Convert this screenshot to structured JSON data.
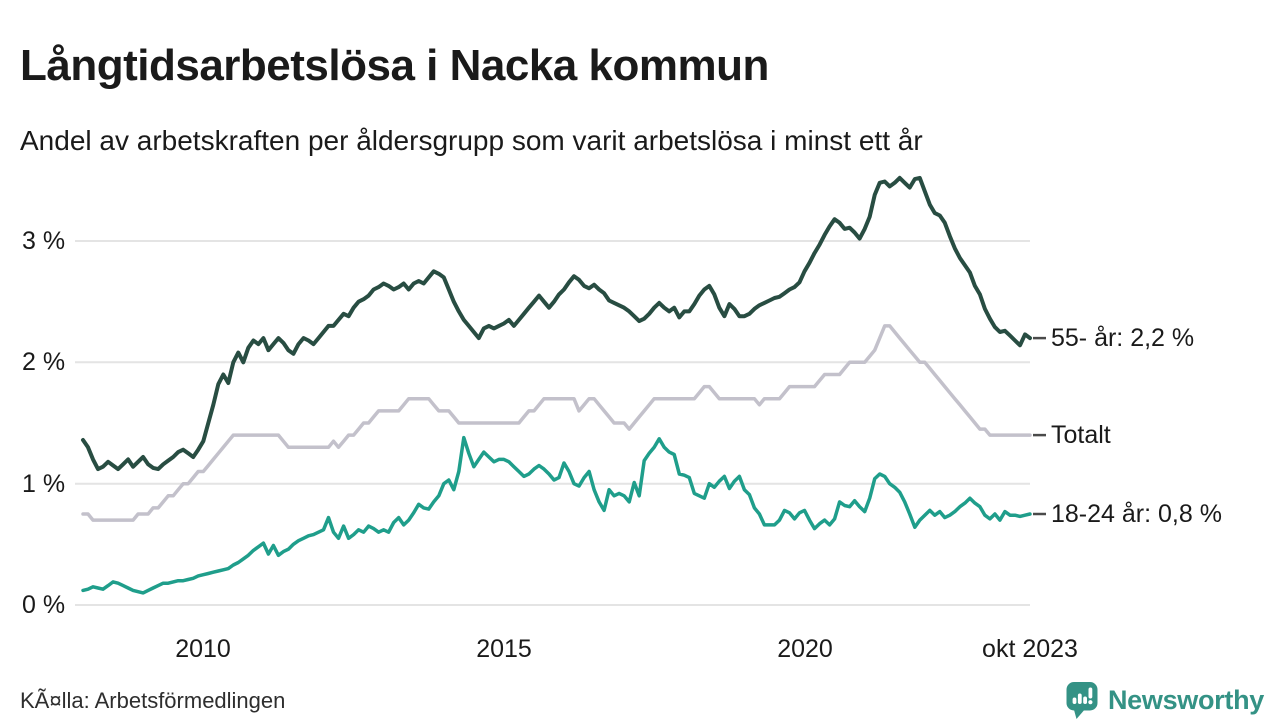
{
  "header": {
    "title": "Långtidsarbetslösa i Nacka kommun",
    "subtitle": "Andel av arbetskraften per åldersgrupp som varit arbetslösa i minst ett år"
  },
  "footer": {
    "source": "KÃ¤lla: Arbetsförmedlingen",
    "brand": "Newsworthy"
  },
  "colors": {
    "text": "#1a1a1a",
    "grid": "#e4e4e4",
    "label_dash": "#4a4a4a",
    "series_55": "#284d42",
    "series_total": "#c3c1cb",
    "series_1824": "#1f9e8b",
    "brand_teal": "#349285"
  },
  "chart_data": {
    "type": "line",
    "title": "Långtidsarbetslösa i Nacka kommun",
    "subtitle": "Andel av arbetskraften per åldersgrupp som varit arbetslösa i minst ett år",
    "xlabel": "",
    "ylabel": "",
    "x_unit": "month",
    "x_start": "2008-01",
    "x_end": "2023-10",
    "x_start_year": 2008.0,
    "x_end_year": 2023.75,
    "ylim": [
      0,
      3.6
    ],
    "grid": true,
    "legend_position": "right-end-labels",
    "yticks": [
      {
        "value": 0,
        "label": "0 %"
      },
      {
        "value": 1,
        "label": "1 %"
      },
      {
        "value": 2,
        "label": "2 %"
      },
      {
        "value": 3,
        "label": "3 %"
      }
    ],
    "xticks": [
      {
        "t": 2010.0,
        "label": "2010"
      },
      {
        "t": 2015.0,
        "label": "2015"
      },
      {
        "t": 2020.0,
        "label": "2020"
      },
      {
        "t": 2023.75,
        "label": "okt 2023"
      }
    ],
    "series": [
      {
        "name": "55- år",
        "end_label": "55- år: 2,2 %",
        "end_value": "2,2 %",
        "color": "#284d42",
        "stroke_width": 4,
        "values": [
          1.36,
          1.3,
          1.2,
          1.12,
          1.14,
          1.18,
          1.15,
          1.12,
          1.16,
          1.2,
          1.14,
          1.18,
          1.22,
          1.16,
          1.13,
          1.12,
          1.16,
          1.19,
          1.22,
          1.26,
          1.28,
          1.25,
          1.22,
          1.28,
          1.35,
          1.5,
          1.65,
          1.82,
          1.9,
          1.83,
          2.0,
          2.08,
          2.0,
          2.12,
          2.18,
          2.15,
          2.2,
          2.1,
          2.15,
          2.2,
          2.16,
          2.1,
          2.07,
          2.15,
          2.2,
          2.18,
          2.15,
          2.2,
          2.25,
          2.3,
          2.3,
          2.35,
          2.4,
          2.38,
          2.45,
          2.5,
          2.52,
          2.55,
          2.6,
          2.62,
          2.65,
          2.63,
          2.6,
          2.62,
          2.65,
          2.6,
          2.65,
          2.67,
          2.65,
          2.7,
          2.75,
          2.73,
          2.7,
          2.6,
          2.5,
          2.42,
          2.35,
          2.3,
          2.25,
          2.2,
          2.28,
          2.3,
          2.28,
          2.3,
          2.32,
          2.35,
          2.3,
          2.35,
          2.4,
          2.45,
          2.5,
          2.55,
          2.5,
          2.45,
          2.5,
          2.56,
          2.6,
          2.66,
          2.71,
          2.68,
          2.63,
          2.61,
          2.64,
          2.6,
          2.57,
          2.51,
          2.49,
          2.47,
          2.45,
          2.42,
          2.38,
          2.34,
          2.36,
          2.4,
          2.45,
          2.49,
          2.45,
          2.42,
          2.45,
          2.37,
          2.42,
          2.42,
          2.48,
          2.55,
          2.6,
          2.63,
          2.56,
          2.45,
          2.38,
          2.48,
          2.44,
          2.38,
          2.38,
          2.4,
          2.44,
          2.47,
          2.49,
          2.51,
          2.53,
          2.54,
          2.57,
          2.6,
          2.62,
          2.66,
          2.75,
          2.82,
          2.9,
          2.97,
          3.05,
          3.12,
          3.18,
          3.15,
          3.1,
          3.11,
          3.07,
          3.02,
          3.1,
          3.2,
          3.38,
          3.48,
          3.49,
          3.45,
          3.48,
          3.52,
          3.48,
          3.44,
          3.51,
          3.52,
          3.41,
          3.3,
          3.23,
          3.21,
          3.15,
          3.04,
          2.94,
          2.86,
          2.8,
          2.74,
          2.63,
          2.56,
          2.44,
          2.36,
          2.29,
          2.25,
          2.26,
          2.22,
          2.18,
          2.14,
          2.23,
          2.2
        ]
      },
      {
        "name": "Totalt",
        "end_label": "Totalt",
        "end_value": "1,4 %",
        "color": "#c3c1cb",
        "stroke_width": 3.5,
        "values": [
          0.75,
          0.75,
          0.7,
          0.7,
          0.7,
          0.7,
          0.7,
          0.7,
          0.7,
          0.7,
          0.7,
          0.75,
          0.75,
          0.75,
          0.8,
          0.8,
          0.85,
          0.9,
          0.9,
          0.95,
          1.0,
          1.0,
          1.05,
          1.1,
          1.1,
          1.15,
          1.2,
          1.25,
          1.3,
          1.35,
          1.4,
          1.4,
          1.4,
          1.4,
          1.4,
          1.4,
          1.4,
          1.4,
          1.4,
          1.4,
          1.35,
          1.3,
          1.3,
          1.3,
          1.3,
          1.3,
          1.3,
          1.3,
          1.3,
          1.3,
          1.35,
          1.3,
          1.35,
          1.4,
          1.4,
          1.45,
          1.5,
          1.5,
          1.55,
          1.6,
          1.6,
          1.6,
          1.6,
          1.6,
          1.65,
          1.7,
          1.7,
          1.7,
          1.7,
          1.7,
          1.65,
          1.6,
          1.6,
          1.6,
          1.55,
          1.5,
          1.5,
          1.5,
          1.5,
          1.5,
          1.5,
          1.5,
          1.5,
          1.5,
          1.5,
          1.5,
          1.5,
          1.5,
          1.55,
          1.6,
          1.6,
          1.65,
          1.7,
          1.7,
          1.7,
          1.7,
          1.7,
          1.7,
          1.7,
          1.6,
          1.65,
          1.7,
          1.7,
          1.65,
          1.6,
          1.55,
          1.5,
          1.5,
          1.5,
          1.45,
          1.5,
          1.55,
          1.6,
          1.65,
          1.7,
          1.7,
          1.7,
          1.7,
          1.7,
          1.7,
          1.7,
          1.7,
          1.7,
          1.75,
          1.8,
          1.8,
          1.75,
          1.7,
          1.7,
          1.7,
          1.7,
          1.7,
          1.7,
          1.7,
          1.7,
          1.65,
          1.7,
          1.7,
          1.7,
          1.7,
          1.75,
          1.8,
          1.8,
          1.8,
          1.8,
          1.8,
          1.8,
          1.85,
          1.9,
          1.9,
          1.9,
          1.9,
          1.95,
          2.0,
          2.0,
          2.0,
          2.0,
          2.05,
          2.1,
          2.2,
          2.3,
          2.3,
          2.25,
          2.2,
          2.15,
          2.1,
          2.05,
          2.0,
          2.0,
          1.95,
          1.9,
          1.85,
          1.8,
          1.75,
          1.7,
          1.65,
          1.6,
          1.55,
          1.5,
          1.45,
          1.45,
          1.4,
          1.4,
          1.4,
          1.4,
          1.4,
          1.4,
          1.4,
          1.4,
          1.4
        ]
      },
      {
        "name": "18-24 år",
        "end_label": "18-24 år: 0,8 %",
        "end_value": "0,8 %",
        "color": "#1f9e8b",
        "stroke_width": 3.5,
        "values": [
          0.12,
          0.13,
          0.15,
          0.14,
          0.13,
          0.16,
          0.19,
          0.18,
          0.16,
          0.14,
          0.12,
          0.11,
          0.1,
          0.12,
          0.14,
          0.16,
          0.18,
          0.18,
          0.19,
          0.2,
          0.2,
          0.21,
          0.22,
          0.24,
          0.25,
          0.26,
          0.27,
          0.28,
          0.29,
          0.3,
          0.33,
          0.35,
          0.38,
          0.41,
          0.45,
          0.48,
          0.51,
          0.42,
          0.49,
          0.41,
          0.44,
          0.46,
          0.5,
          0.53,
          0.55,
          0.57,
          0.58,
          0.6,
          0.62,
          0.72,
          0.6,
          0.55,
          0.65,
          0.55,
          0.58,
          0.62,
          0.6,
          0.65,
          0.63,
          0.6,
          0.62,
          0.6,
          0.68,
          0.72,
          0.66,
          0.7,
          0.76,
          0.83,
          0.8,
          0.79,
          0.85,
          0.9,
          1.0,
          1.03,
          0.95,
          1.1,
          1.38,
          1.25,
          1.14,
          1.2,
          1.26,
          1.22,
          1.18,
          1.2,
          1.2,
          1.18,
          1.14,
          1.1,
          1.06,
          1.08,
          1.12,
          1.15,
          1.12,
          1.08,
          1.03,
          1.05,
          1.17,
          1.1,
          1.0,
          0.98,
          1.05,
          1.1,
          0.95,
          0.85,
          0.78,
          0.95,
          0.9,
          0.92,
          0.9,
          0.85,
          1.01,
          0.9,
          1.19,
          1.25,
          1.3,
          1.37,
          1.3,
          1.26,
          1.24,
          1.08,
          1.07,
          1.05,
          0.92,
          0.9,
          0.88,
          1.0,
          0.97,
          1.02,
          1.06,
          0.96,
          1.02,
          1.06,
          0.95,
          0.91,
          0.8,
          0.75,
          0.66,
          0.66,
          0.66,
          0.7,
          0.78,
          0.76,
          0.71,
          0.76,
          0.78,
          0.7,
          0.63,
          0.67,
          0.7,
          0.66,
          0.71,
          0.85,
          0.82,
          0.81,
          0.86,
          0.81,
          0.77,
          0.88,
          1.04,
          1.08,
          1.06,
          1.0,
          0.97,
          0.93,
          0.85,
          0.75,
          0.64,
          0.7,
          0.74,
          0.78,
          0.74,
          0.77,
          0.72,
          0.74,
          0.77,
          0.81,
          0.84,
          0.88,
          0.84,
          0.81,
          0.74,
          0.71,
          0.75,
          0.7,
          0.77,
          0.74,
          0.74,
          0.73,
          0.74,
          0.75
        ]
      }
    ]
  }
}
